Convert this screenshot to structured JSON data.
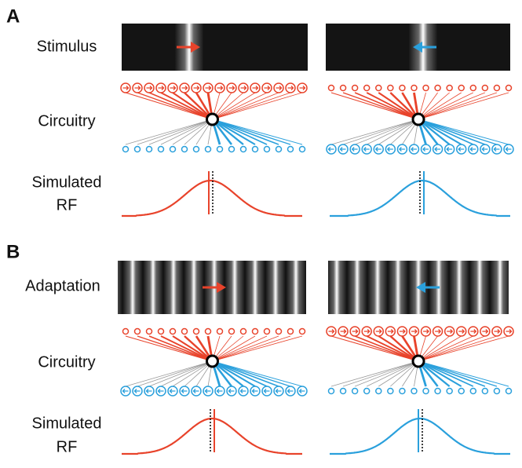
{
  "panels": [
    {
      "label": "A",
      "rows": [
        {
          "label": [
            "Stimulus"
          ]
        },
        {
          "label": [
            "Circuitry"
          ]
        },
        {
          "label": [
            "Simulated",
            "RF"
          ]
        }
      ]
    },
    {
      "label": "B",
      "rows": [
        {
          "label": [
            "Adaptation"
          ]
        },
        {
          "label": [
            "Circuitry"
          ]
        },
        {
          "label": [
            "Simulated",
            "RF"
          ]
        }
      ]
    }
  ]
}
